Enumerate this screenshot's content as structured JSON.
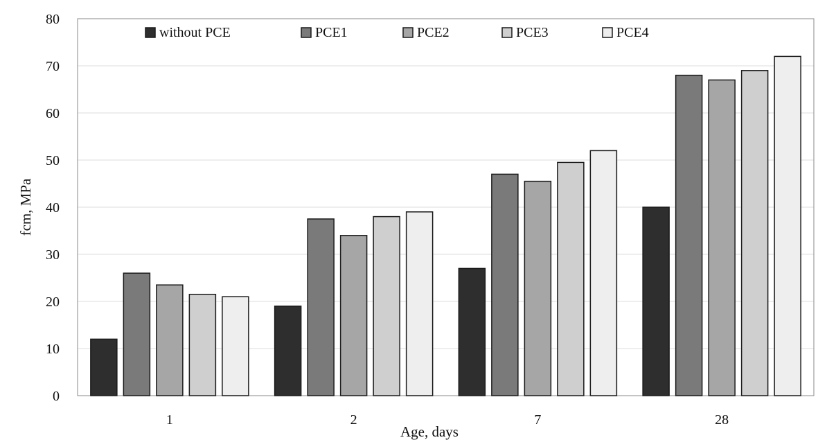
{
  "chart_data": {
    "type": "bar",
    "title": "",
    "xlabel": "Age, days",
    "ylabel": "fcm, MPa",
    "categories": [
      "1",
      "2",
      "7",
      "28"
    ],
    "ylim": [
      0,
      80
    ],
    "yticks": [
      0,
      10,
      20,
      30,
      40,
      50,
      60,
      70,
      80
    ],
    "grid": true,
    "legend_position": "top",
    "series": [
      {
        "name": "without PCE",
        "color": "#2e2e2e",
        "values": [
          12,
          19,
          27,
          40
        ]
      },
      {
        "name": "PCE1",
        "color": "#7a7a7a",
        "values": [
          26,
          37.5,
          47,
          68
        ]
      },
      {
        "name": "PCE2",
        "color": "#a6a6a6",
        "values": [
          23.5,
          34,
          45.5,
          67
        ]
      },
      {
        "name": "PCE3",
        "color": "#cfcfcf",
        "values": [
          21.5,
          38,
          49.5,
          69
        ]
      },
      {
        "name": "PCE4",
        "color": "#eeeeee",
        "values": [
          21,
          39,
          52,
          72
        ]
      }
    ]
  }
}
